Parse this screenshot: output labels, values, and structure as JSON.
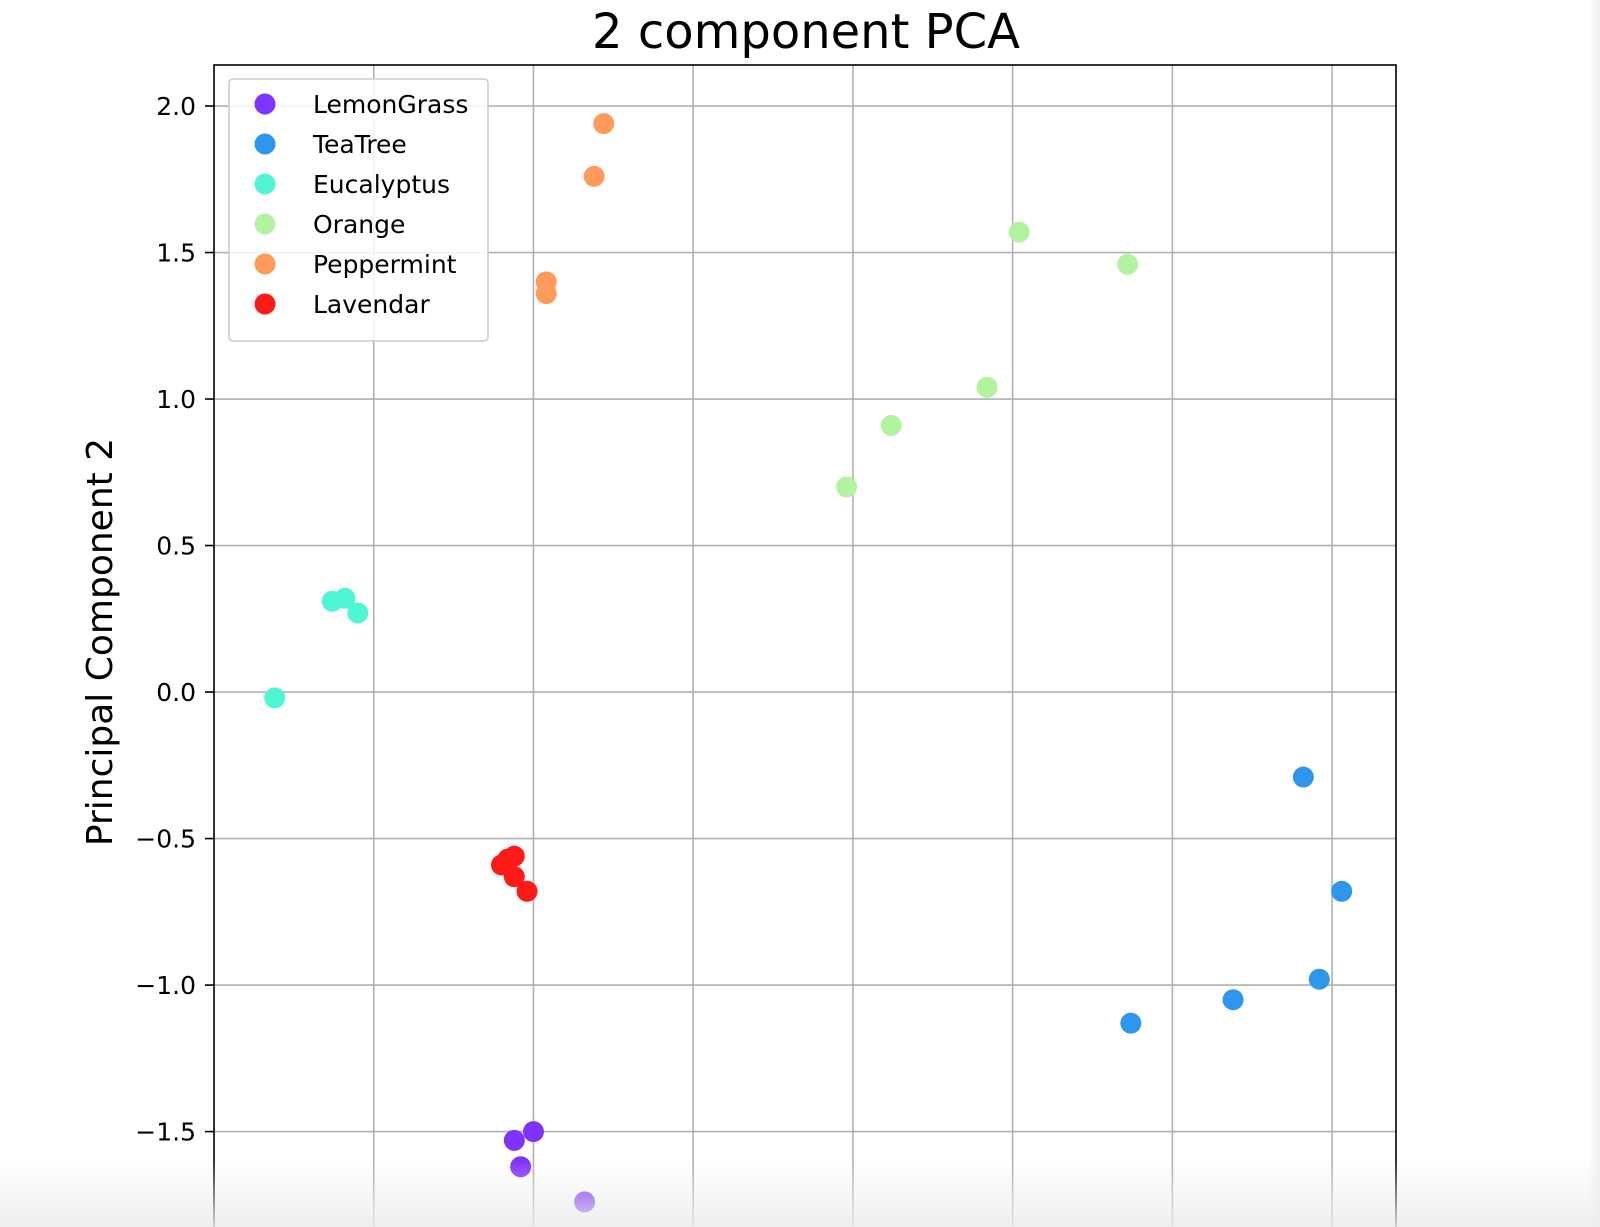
{
  "chart_data": {
    "type": "scatter",
    "title": "2 component PCA",
    "xlabel": "",
    "ylabel": "Principal Component 2",
    "xlim": [
      -2.2,
      1.5
    ],
    "ylim": [
      -1.87,
      2.14
    ],
    "yticks": [
      -1.5,
      -1.0,
      -0.5,
      0.0,
      0.5,
      1.0,
      1.5,
      2.0
    ],
    "ytick_labels": [
      "−1.5",
      "−1.0",
      "−0.5",
      "0.0",
      "0.5",
      "1.0",
      "1.5",
      "2.0"
    ],
    "xgrid": [
      -1.7,
      -1.2,
      -0.7,
      -0.2,
      0.3,
      0.8,
      1.3
    ],
    "grid": true,
    "legend_position": "top-left",
    "series": [
      {
        "name": "LemonGrass",
        "color": "#8032ff",
        "points": [
          [
            -1.26,
            -1.53
          ],
          [
            -1.2,
            -1.5
          ],
          [
            -1.24,
            -1.62
          ],
          [
            -1.04,
            -1.74
          ]
        ]
      },
      {
        "name": "TeaTree",
        "color": "#2f96ee",
        "points": [
          [
            1.21,
            -0.29
          ],
          [
            1.33,
            -0.68
          ],
          [
            1.26,
            -0.98
          ],
          [
            0.99,
            -1.05
          ],
          [
            0.67,
            -1.13
          ]
        ]
      },
      {
        "name": "Eucalyptus",
        "color": "#4ef6d5",
        "points": [
          [
            -1.83,
            0.31
          ],
          [
            -1.79,
            0.32
          ],
          [
            -1.75,
            0.27
          ],
          [
            -2.01,
            -0.02
          ]
        ]
      },
      {
        "name": "Orange",
        "color": "#b1f39e",
        "points": [
          [
            0.32,
            1.57
          ],
          [
            0.66,
            1.46
          ],
          [
            0.22,
            1.04
          ],
          [
            -0.08,
            0.91
          ],
          [
            -0.22,
            0.7
          ]
        ]
      },
      {
        "name": "Peppermint",
        "color": "#ff9a5a",
        "points": [
          [
            -0.98,
            1.94
          ],
          [
            -1.01,
            1.76
          ],
          [
            -1.16,
            1.4
          ],
          [
            -1.16,
            1.36
          ]
        ]
      },
      {
        "name": "Lavendar",
        "color": "#ff1a1a",
        "points": [
          [
            -1.3,
            -0.59
          ],
          [
            -1.28,
            -0.57
          ],
          [
            -1.26,
            -0.56
          ],
          [
            -1.26,
            -0.63
          ],
          [
            -1.22,
            -0.68
          ]
        ]
      }
    ]
  }
}
